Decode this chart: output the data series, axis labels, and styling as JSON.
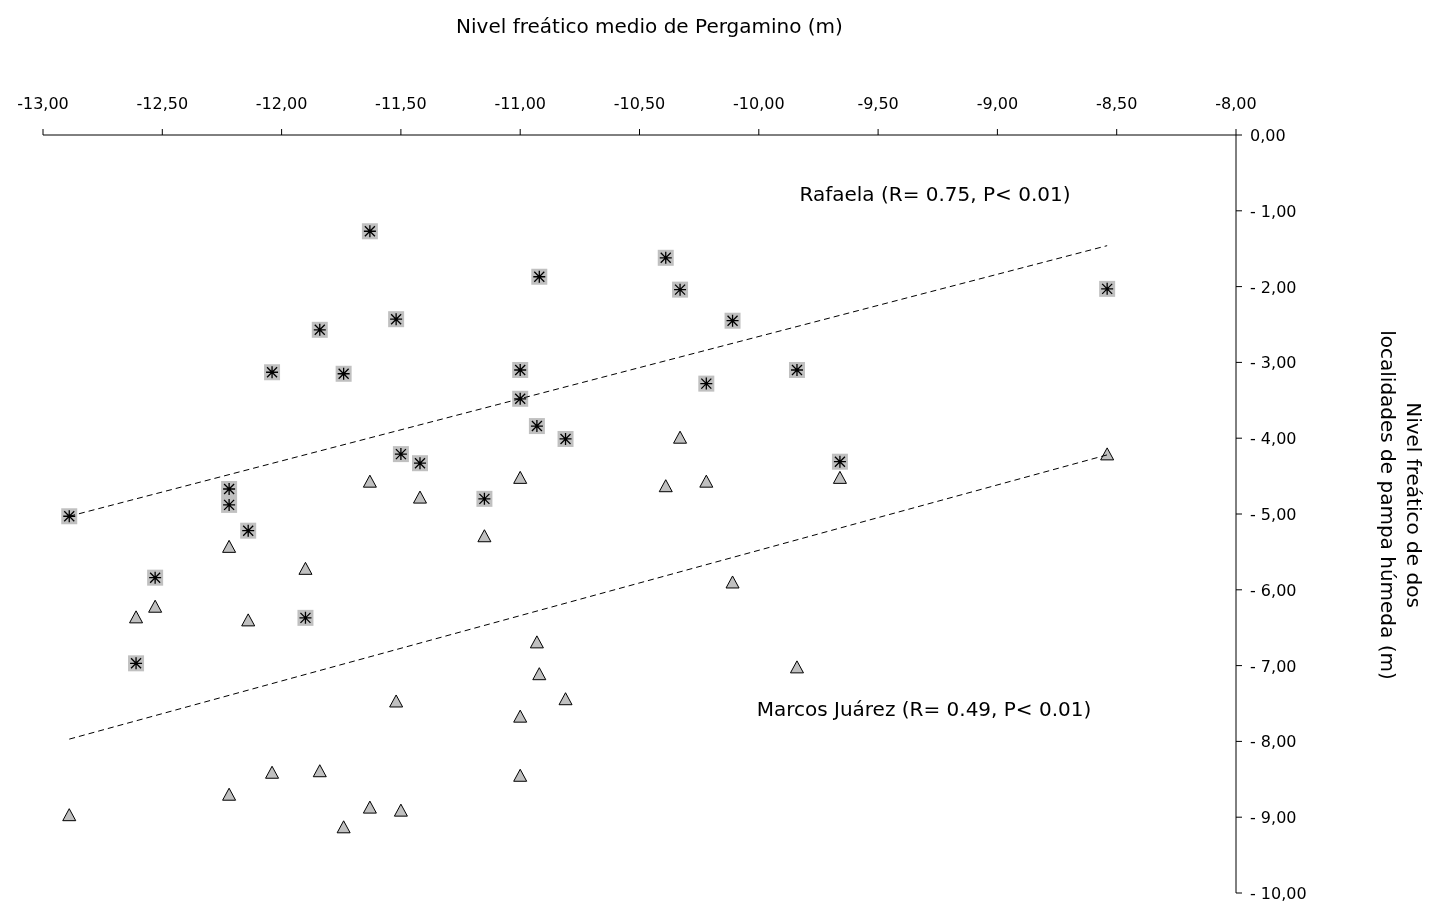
{
  "chart_data": {
    "type": "scatter",
    "xlabel": "Nivel freático medio de Pergamino (m)",
    "ylabel": "Nivel freático de dos localidades de pampa húmeda (m)",
    "xlim": [
      -13,
      -8
    ],
    "ylim": [
      -10,
      0
    ],
    "xticks": [
      {
        "value": -13,
        "label": "-13,00"
      },
      {
        "value": -12.5,
        "label": "-12,50"
      },
      {
        "value": -12,
        "label": "-12,00"
      },
      {
        "value": -11.5,
        "label": "-11,50"
      },
      {
        "value": -11,
        "label": "-11,00"
      },
      {
        "value": -10.5,
        "label": "-10,50"
      },
      {
        "value": -10,
        "label": "-10,00"
      },
      {
        "value": -9.5,
        "label": "-9,50"
      },
      {
        "value": -9,
        "label": "-9,00"
      },
      {
        "value": -8.5,
        "label": "-8,50"
      },
      {
        "value": -8,
        "label": "-8,00"
      }
    ],
    "yticks": [
      {
        "value": 0,
        "label": "0,00"
      },
      {
        "value": -1,
        "label": "- 1,00"
      },
      {
        "value": -2,
        "label": "- 2,00"
      },
      {
        "value": -3,
        "label": "- 3,00"
      },
      {
        "value": -4,
        "label": "- 4,00"
      },
      {
        "value": -5,
        "label": "- 5,00"
      },
      {
        "value": -6,
        "label": "- 6,00"
      },
      {
        "value": -7,
        "label": "- 7,00"
      },
      {
        "value": -8,
        "label": "- 8,00"
      },
      {
        "value": -9,
        "label": "- 9,00"
      },
      {
        "value": -10,
        "label": "- 10,00"
      }
    ],
    "grid": false,
    "series": [
      {
        "marker": "square",
        "color": "#c0c0c0",
        "x": [
          -12.89,
          -11.63,
          -10.92,
          -10.39,
          -10.33,
          -8.54,
          -11.84,
          -11.52,
          -10.11,
          -12.04,
          -11.74,
          -11.0,
          -11.0,
          -10.22,
          -9.84,
          -10.93,
          -10.81,
          -11.5,
          -11.42,
          -9.66,
          -12.22,
          -12.22,
          -11.15,
          -12.14,
          -12.53,
          -11.9,
          -12.61
        ],
        "values": [
          -5.03,
          -1.27,
          -1.87,
          -1.62,
          -2.04,
          -2.03,
          -2.57,
          -2.43,
          -2.45,
          -3.13,
          -3.15,
          -3.1,
          -3.48,
          -3.28,
          -3.1,
          -3.84,
          -4.01,
          -4.21,
          -4.33,
          -4.31,
          -4.67,
          -4.88,
          -4.8,
          -5.22,
          -5.84,
          -6.37,
          -6.97
        ]
      },
      {
        "marker": "triangle",
        "color": "#c0c0c0",
        "x": [
          -12.89,
          -12.61,
          -12.53,
          -12.22,
          -12.14,
          -11.9,
          -12.22,
          -12.04,
          -11.84,
          -11.74,
          -11.63,
          -11.5,
          -11.63,
          -11.42,
          -11.52,
          -11.15,
          -11.0,
          -11.0,
          -11.0,
          -10.93,
          -10.92,
          -10.81,
          -10.39,
          -10.33,
          -10.22,
          -10.11,
          -9.84,
          -9.66,
          -8.54
        ],
        "values": [
          -8.98,
          -6.37,
          -6.23,
          -5.44,
          -6.41,
          -5.73,
          -8.71,
          -8.42,
          -8.4,
          -9.14,
          -8.88,
          -8.92,
          -4.58,
          -4.79,
          -7.48,
          -5.3,
          -4.53,
          -7.68,
          -8.46,
          -6.7,
          -7.12,
          -7.45,
          -4.64,
          -4.0,
          -4.58,
          -5.91,
          -7.03,
          -4.53,
          -4.22
        ]
      },
      {
        "type": "line",
        "line_style": "dashed",
        "color": "#000000",
        "x": [
          -12.89,
          -8.54
        ],
        "values": [
          -5.03,
          -1.46
        ]
      },
      {
        "type": "line",
        "line_style": "dashed",
        "color": "#000000",
        "x": [
          -12.89,
          -8.54
        ],
        "values": [
          -7.97,
          -4.22
        ]
      }
    ],
    "annotations": [
      "Rafaela (R= 0.75, P< 0.01)",
      "Marcos Juárez (R= 0.49, P< 0.01)"
    ]
  }
}
